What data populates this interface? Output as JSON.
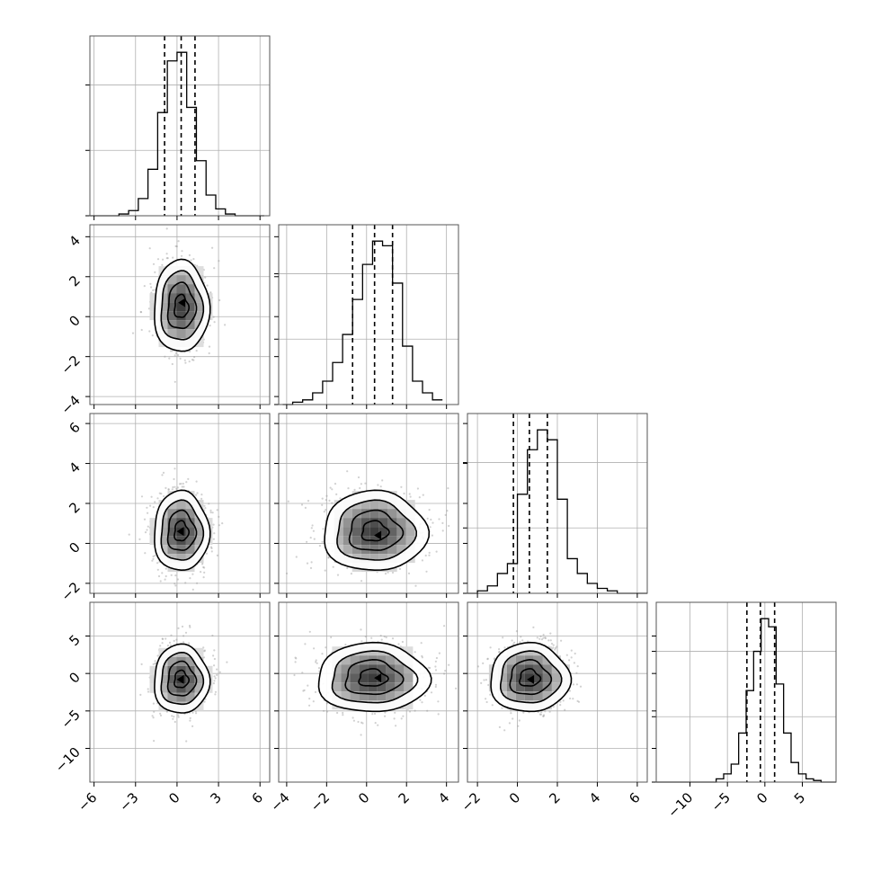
{
  "chart_data": {
    "type": "corner",
    "parameters": 4,
    "axis_labels": [],
    "quantiles": [
      0.16,
      0.5,
      0.84
    ],
    "grid": true,
    "ranges": [
      [
        -6.3,
        6.7
      ],
      [
        -4.4,
        4.6
      ],
      [
        -2.5,
        6.5
      ],
      [
        -14.5,
        9.5
      ]
    ],
    "ticks": [
      [
        -6,
        -3,
        0,
        3,
        6
      ],
      [
        -4,
        -2,
        0,
        2,
        4
      ],
      [
        -2,
        0,
        2,
        4,
        6
      ],
      [
        -10,
        -5,
        0,
        5
      ]
    ],
    "tick_labels": [
      [
        "−6",
        "−3",
        "0",
        "3",
        "6"
      ],
      [
        "−4",
        "−2",
        "0",
        "2",
        "4"
      ],
      [
        "−2",
        "0",
        "2",
        "4",
        "6"
      ],
      [
        "−10",
        "−5",
        "0",
        "5"
      ]
    ],
    "histograms": [
      {
        "param": 1,
        "bins": [
          -6.3,
          -5.6,
          -4.9,
          -4.2,
          -3.5,
          -2.8,
          -2.1,
          -1.4,
          -0.7,
          0,
          0.7,
          1.4,
          2.1,
          2.8,
          3.5,
          4.2,
          4.9,
          5.6,
          6.3
        ],
        "counts": [
          0,
          0,
          0,
          1,
          3,
          10,
          27,
          60,
          90,
          95,
          63,
          32,
          12,
          4,
          1,
          0,
          0,
          0
        ],
        "quantile_values": [
          -0.9,
          0.3,
          1.3
        ]
      },
      {
        "param": 2,
        "bins": [
          -4.2,
          -3.7,
          -3.2,
          -2.7,
          -2.2,
          -1.7,
          -1.2,
          -0.7,
          -0.2,
          0.3,
          0.8,
          1.3,
          1.8,
          2.3,
          2.8,
          3.3,
          3.8
        ],
        "counts": [
          0,
          1,
          2,
          5,
          10,
          18,
          30,
          45,
          60,
          70,
          68,
          52,
          25,
          10,
          5,
          2
        ],
        "quantile_values": [
          -0.7,
          0.4,
          1.3
        ]
      },
      {
        "param": 3,
        "bins": [
          -2.5,
          -2,
          -1.5,
          -1,
          -0.5,
          0,
          0.5,
          1,
          1.5,
          2,
          2.5,
          3,
          3.5,
          4,
          4.5,
          5,
          5.5,
          6,
          6.5
        ],
        "counts": [
          0,
          1,
          3,
          8,
          12,
          40,
          58,
          66,
          62,
          38,
          14,
          8,
          4,
          2,
          1,
          0,
          0,
          0
        ],
        "quantile_values": [
          -0.2,
          0.6,
          1.5
        ]
      },
      {
        "param": 4,
        "bins": [
          -14.5,
          -13.5,
          -12.5,
          -11.5,
          -10.5,
          -9.5,
          -8.5,
          -7.5,
          -6.5,
          -5.5,
          -4.5,
          -3.5,
          -2.5,
          -1.5,
          -0.5,
          0.5,
          1.5,
          2.5,
          3.5,
          4.5,
          5.5,
          6.5,
          7.5,
          8.5,
          9.5
        ],
        "counts": [
          0,
          0,
          0,
          0,
          0,
          0,
          0,
          0,
          2,
          5,
          11,
          30,
          56,
          80,
          100,
          95,
          60,
          30,
          12,
          5,
          2,
          1,
          0,
          0
        ],
        "quantile_values": [
          -2.4,
          -0.6,
          1.3
        ]
      }
    ],
    "pairs": [
      {
        "x_param": 1,
        "y_param": 2,
        "center": [
          0.3,
          0.5
        ],
        "sx": 1.0,
        "sy": 1.15,
        "mode": [
          0.4,
          0.7
        ]
      },
      {
        "x_param": 1,
        "y_param": 3,
        "center": [
          0.3,
          0.6
        ],
        "sx": 1.0,
        "sy": 1.0,
        "mode": [
          0.3,
          0.6
        ]
      },
      {
        "x_param": 2,
        "y_param": 3,
        "center": [
          0.4,
          0.6
        ],
        "sx": 1.3,
        "sy": 1.0,
        "mode": [
          0.6,
          0.4
        ]
      },
      {
        "x_param": 1,
        "y_param": 4,
        "center": [
          0.3,
          -0.8
        ],
        "sx": 1.0,
        "sy": 2.3,
        "mode": [
          0.3,
          -0.8
        ]
      },
      {
        "x_param": 2,
        "y_param": 4,
        "center": [
          0.3,
          -0.6
        ],
        "sx": 1.4,
        "sy": 2.3,
        "mode": [
          0.6,
          -0.6
        ]
      },
      {
        "x_param": 3,
        "y_param": 4,
        "center": [
          0.6,
          -0.6
        ],
        "sx": 1.0,
        "sy": 2.3,
        "mode": [
          0.7,
          -0.8
        ]
      }
    ],
    "contour_levels": [
      0.5,
      1.0,
      1.5,
      2.0
    ]
  }
}
